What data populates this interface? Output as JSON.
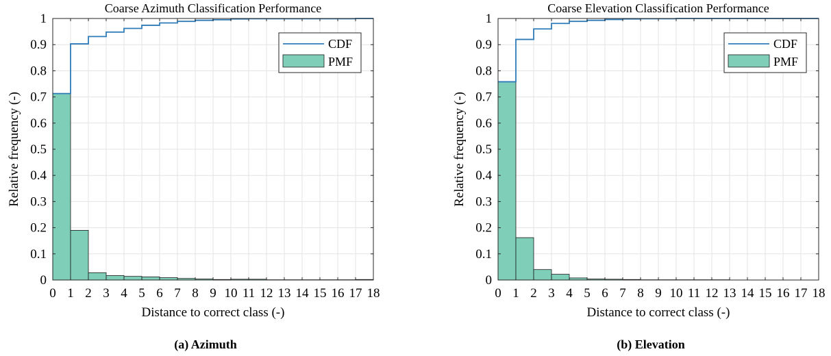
{
  "chart_data": [
    {
      "type": "bar",
      "title": "Coarse Azimuth Classification Performance",
      "xlabel": "Distance to correct class (-)",
      "ylabel": "Relative frequency (-)",
      "xlim": [
        0,
        18
      ],
      "ylim": [
        0,
        1
      ],
      "x_ticks": [
        "0",
        "1",
        "2",
        "3",
        "4",
        "5",
        "6",
        "7",
        "8",
        "9",
        "10",
        "11",
        "12",
        "13",
        "14",
        "15",
        "16",
        "17",
        "18"
      ],
      "y_ticks": [
        "0",
        "0.1",
        "0.2",
        "0.3",
        "0.4",
        "0.5",
        "0.6",
        "0.7",
        "0.8",
        "0.9",
        "1"
      ],
      "grid": true,
      "legend_position": "top-right",
      "categories": [
        "0",
        "1",
        "2",
        "3",
        "4",
        "5",
        "6",
        "7",
        "8",
        "9",
        "10",
        "11",
        "12",
        "13",
        "14",
        "15",
        "16",
        "17"
      ],
      "series": [
        {
          "name": "PMF",
          "type": "bar",
          "color": "#7fcfb8",
          "values": [
            0.713,
            0.19,
            0.028,
            0.017,
            0.014,
            0.012,
            0.009,
            0.006,
            0.004,
            0.002,
            0.003,
            0.003,
            0.001,
            0.001,
            0.001,
            0.001,
            0.001,
            0.002
          ]
        },
        {
          "name": "CDF",
          "type": "step",
          "color": "#2e7bb8",
          "values": [
            0.713,
            0.903,
            0.931,
            0.948,
            0.962,
            0.974,
            0.983,
            0.989,
            0.993,
            0.995,
            0.998,
            0.999,
            0.999,
            0.999,
            0.999,
            0.999,
            0.999,
            1.0
          ]
        }
      ]
    },
    {
      "type": "bar",
      "title": "Coarse Elevation Classification Performance",
      "xlabel": "Distance to correct class (-)",
      "ylabel": "Relative frequency (-)",
      "xlim": [
        0,
        18
      ],
      "ylim": [
        0,
        1
      ],
      "x_ticks": [
        "0",
        "1",
        "2",
        "3",
        "4",
        "5",
        "6",
        "7",
        "8",
        "9",
        "10",
        "11",
        "12",
        "13",
        "14",
        "15",
        "16",
        "17",
        "18"
      ],
      "y_ticks": [
        "0",
        "0.1",
        "0.2",
        "0.3",
        "0.4",
        "0.5",
        "0.6",
        "0.7",
        "0.8",
        "0.9",
        "1"
      ],
      "grid": true,
      "legend_position": "top-right",
      "categories": [
        "0",
        "1",
        "2",
        "3",
        "4",
        "5",
        "6",
        "7",
        "8",
        "9",
        "10",
        "11",
        "12",
        "13",
        "14",
        "15",
        "16",
        "17"
      ],
      "series": [
        {
          "name": "PMF",
          "type": "bar",
          "color": "#7fcfb8",
          "values": [
            0.758,
            0.162,
            0.04,
            0.022,
            0.008,
            0.004,
            0.003,
            0.002,
            0.001,
            0.001,
            0.001,
            0.001,
            0.001,
            0,
            0,
            0,
            0,
            0
          ]
        },
        {
          "name": "CDF",
          "type": "step",
          "color": "#2e7bb8",
          "values": [
            0.758,
            0.92,
            0.96,
            0.981,
            0.989,
            0.993,
            0.996,
            0.998,
            0.999,
            0.999,
            1.0,
            1.0,
            1.0,
            1.0,
            1.0,
            1.0,
            1.0,
            1.0
          ]
        }
      ]
    }
  ],
  "captions": [
    {
      "tag": "(a)",
      "text": "Azimuth"
    },
    {
      "tag": "(b)",
      "text": "Elevation"
    }
  ],
  "style": {
    "grid_color": "#e3e3e3",
    "axis_color": "#262626",
    "bar_edge": "#1a1a1a"
  }
}
